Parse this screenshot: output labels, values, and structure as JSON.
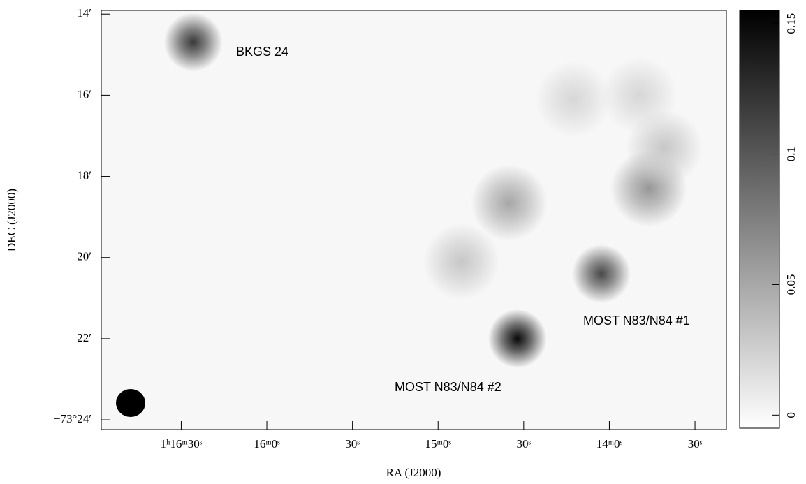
{
  "chart_data": {
    "type": "image",
    "xlabel": "RA (J2000)",
    "ylabel": "DEC (J2000)",
    "xlim": [
      4618,
      4399
    ],
    "xticks": [
      {
        "value": 4590,
        "label": "1ʰ16ᵐ30ˢ"
      },
      {
        "value": 4560,
        "label": "16ᵐ0ˢ"
      },
      {
        "value": 4530,
        "label": "30ˢ"
      },
      {
        "value": 4500,
        "label": "15ᵐ0ˢ"
      },
      {
        "value": 4470,
        "label": "30ˢ"
      },
      {
        "value": 4440,
        "label": "14ᵐ0ˢ"
      },
      {
        "value": 4410,
        "label": "30ˢ"
      }
    ],
    "ylim": [
      -4404.24,
      -4393.91
    ],
    "yticks": [
      {
        "value": -4394,
        "label": "14′"
      },
      {
        "value": -4396,
        "label": "16′"
      },
      {
        "value": -4398,
        "label": "18′"
      },
      {
        "value": -4400,
        "label": "20′"
      },
      {
        "value": -4402,
        "label": "22′"
      },
      {
        "value": -4404,
        "label": "−73°24′"
      }
    ],
    "clim": [
      -0.005,
      0.155
    ],
    "cticks": [
      0,
      0.05,
      {
        "value": 0.1,
        "label": "0.1"
      },
      0.15
    ],
    "annotations": [
      "BKGS 24",
      "MOST N83/N84 #1",
      "MOST N83/N84 #2"
    ],
    "sources": {
      "x": [
        4585.8,
        4472.2,
        4442.8,
        4475.1,
        4426.2,
        4491.8,
        4420.8,
        4452.6,
        4429.5
      ],
      "y": [
        -4394.69,
        -4402.0,
        -4400.4,
        -4398.65,
        -4398.3,
        -4400.1,
        -4397.3,
        -4396.1,
        -4396.0
      ],
      "values": [
        0.12,
        0.15,
        0.11,
        0.05,
        0.06,
        0.03,
        0.03,
        0.02,
        0.02
      ]
    }
  }
}
